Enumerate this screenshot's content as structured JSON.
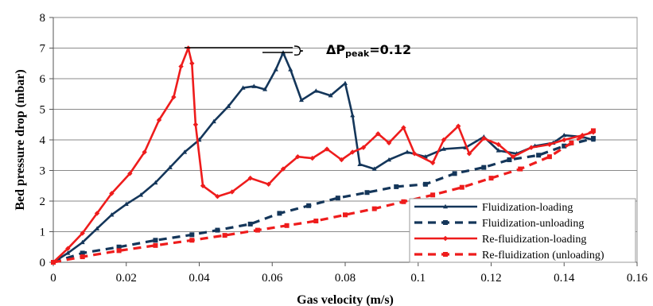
{
  "chart_data": {
    "type": "line",
    "title": "",
    "xlabel": "Gas velocity (m/s)",
    "ylabel": "Bed pressure drop (mbar)",
    "xlim": [
      0,
      0.16
    ],
    "ylim": [
      0,
      8
    ],
    "x_ticks": [
      "0",
      "0.02",
      "0.04",
      "0.06",
      "0.08",
      "0.1",
      "0.12",
      "0.14",
      "0.16"
    ],
    "y_ticks": [
      "0",
      "1",
      "2",
      "3",
      "4",
      "5",
      "6",
      "7",
      "8"
    ],
    "legend_position": "bottom-right",
    "annotation": {
      "text": "ΔP",
      "sub": "peak",
      "value": "=0.12"
    },
    "series": [
      {
        "name": "Fluidization-loading",
        "color": "#14365a",
        "line_style": "solid",
        "marker": "triangle",
        "points": [
          [
            0,
            0
          ],
          [
            0.004,
            0.3
          ],
          [
            0.008,
            0.65
          ],
          [
            0.012,
            1.1
          ],
          [
            0.016,
            1.55
          ],
          [
            0.02,
            1.9
          ],
          [
            0.024,
            2.2
          ],
          [
            0.028,
            2.6
          ],
          [
            0.032,
            3.1
          ],
          [
            0.036,
            3.6
          ],
          [
            0.04,
            4.0
          ],
          [
            0.044,
            4.6
          ],
          [
            0.048,
            5.1
          ],
          [
            0.052,
            5.7
          ],
          [
            0.055,
            5.75
          ],
          [
            0.058,
            5.65
          ],
          [
            0.061,
            6.3
          ],
          [
            0.063,
            6.85
          ],
          [
            0.065,
            6.3
          ],
          [
            0.068,
            5.3
          ],
          [
            0.072,
            5.6
          ],
          [
            0.076,
            5.45
          ],
          [
            0.08,
            5.85
          ],
          [
            0.082,
            4.8
          ],
          [
            0.084,
            3.2
          ],
          [
            0.088,
            3.05
          ],
          [
            0.092,
            3.35
          ],
          [
            0.097,
            3.6
          ],
          [
            0.102,
            3.45
          ],
          [
            0.107,
            3.7
          ],
          [
            0.113,
            3.75
          ],
          [
            0.118,
            4.1
          ],
          [
            0.122,
            3.65
          ],
          [
            0.127,
            3.55
          ],
          [
            0.132,
            3.8
          ],
          [
            0.137,
            3.9
          ],
          [
            0.14,
            4.15
          ],
          [
            0.145,
            4.1
          ],
          [
            0.148,
            4.0
          ]
        ]
      },
      {
        "name": "Fluidization-unloading",
        "color": "#14365a",
        "line_style": "dashed",
        "marker": "square",
        "points": [
          [
            0,
            0
          ],
          [
            0.008,
            0.3
          ],
          [
            0.018,
            0.5
          ],
          [
            0.028,
            0.72
          ],
          [
            0.038,
            0.9
          ],
          [
            0.045,
            1.05
          ],
          [
            0.054,
            1.25
          ],
          [
            0.062,
            1.6
          ],
          [
            0.07,
            1.85
          ],
          [
            0.078,
            2.1
          ],
          [
            0.086,
            2.28
          ],
          [
            0.094,
            2.47
          ],
          [
            0.102,
            2.55
          ],
          [
            0.11,
            2.9
          ],
          [
            0.118,
            3.1
          ],
          [
            0.125,
            3.35
          ],
          [
            0.133,
            3.5
          ],
          [
            0.14,
            3.8
          ],
          [
            0.148,
            4.05
          ]
        ]
      },
      {
        "name": "Re-fluidization-loading",
        "color": "#ee1c1c",
        "line_style": "solid",
        "marker": "diamond",
        "points": [
          [
            0,
            0
          ],
          [
            0.004,
            0.45
          ],
          [
            0.008,
            0.95
          ],
          [
            0.012,
            1.6
          ],
          [
            0.016,
            2.25
          ],
          [
            0.021,
            2.9
          ],
          [
            0.025,
            3.6
          ],
          [
            0.029,
            4.65
          ],
          [
            0.033,
            5.4
          ],
          [
            0.035,
            6.4
          ],
          [
            0.037,
            7.0
          ],
          [
            0.038,
            6.5
          ],
          [
            0.039,
            4.5
          ],
          [
            0.041,
            2.5
          ],
          [
            0.045,
            2.15
          ],
          [
            0.049,
            2.3
          ],
          [
            0.054,
            2.75
          ],
          [
            0.059,
            2.55
          ],
          [
            0.063,
            3.05
          ],
          [
            0.067,
            3.45
          ],
          [
            0.071,
            3.4
          ],
          [
            0.075,
            3.7
          ],
          [
            0.079,
            3.35
          ],
          [
            0.082,
            3.6
          ],
          [
            0.085,
            3.75
          ],
          [
            0.089,
            4.2
          ],
          [
            0.092,
            3.9
          ],
          [
            0.096,
            4.4
          ],
          [
            0.099,
            3.55
          ],
          [
            0.104,
            3.25
          ],
          [
            0.107,
            4.0
          ],
          [
            0.111,
            4.45
          ],
          [
            0.114,
            3.55
          ],
          [
            0.118,
            4.05
          ],
          [
            0.122,
            3.85
          ],
          [
            0.126,
            3.45
          ],
          [
            0.131,
            3.75
          ],
          [
            0.136,
            3.85
          ],
          [
            0.14,
            4.0
          ],
          [
            0.145,
            4.15
          ],
          [
            0.148,
            4.25
          ]
        ]
      },
      {
        "name": "Re-fluidization (unloading)",
        "color": "#ee1c1c",
        "line_style": "dashed",
        "marker": "square",
        "points": [
          [
            0,
            0
          ],
          [
            0.008,
            0.18
          ],
          [
            0.018,
            0.38
          ],
          [
            0.028,
            0.55
          ],
          [
            0.038,
            0.72
          ],
          [
            0.047,
            0.88
          ],
          [
            0.056,
            1.05
          ],
          [
            0.064,
            1.2
          ],
          [
            0.072,
            1.35
          ],
          [
            0.08,
            1.55
          ],
          [
            0.088,
            1.75
          ],
          [
            0.096,
            1.98
          ],
          [
            0.104,
            2.2
          ],
          [
            0.112,
            2.45
          ],
          [
            0.12,
            2.75
          ],
          [
            0.128,
            3.05
          ],
          [
            0.136,
            3.45
          ],
          [
            0.142,
            3.9
          ],
          [
            0.148,
            4.3
          ]
        ]
      }
    ]
  }
}
